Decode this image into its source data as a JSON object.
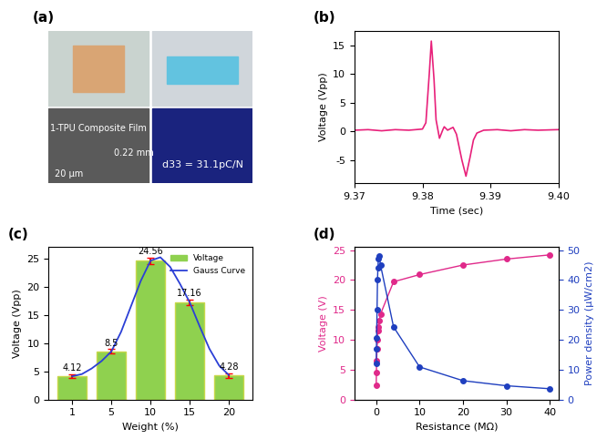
{
  "photo_panel": {
    "title": "(a)",
    "texts": {
      "film": "1-TPU Composite Film",
      "thickness": "0.22 mm",
      "scale": "20 μm",
      "d33": "d33 = 31.1pC/N"
    }
  },
  "chart_data": [
    {
      "type": "line",
      "title": "(b)",
      "x_label": "Time (sec)",
      "y_label": "Voltage (Vpp)",
      "x": [
        9.37,
        9.372,
        9.374,
        9.376,
        9.378,
        9.379,
        9.38,
        9.3805,
        9.381,
        9.3813,
        9.3817,
        9.382,
        9.3825,
        9.383,
        9.3832,
        9.3837,
        9.384,
        9.3845,
        9.385,
        9.3858,
        9.3864,
        9.387,
        9.3875,
        9.388,
        9.389,
        9.391,
        9.393,
        9.395,
        9.397,
        9.4
      ],
      "values": [
        0.2,
        0.3,
        0.1,
        0.3,
        0.2,
        0.3,
        0.4,
        1.5,
        10,
        15.7,
        9,
        2,
        -1.2,
        0.3,
        0.8,
        0.2,
        0.4,
        0.7,
        -0.5,
        -5,
        -7.8,
        -4.5,
        -1.5,
        -0.3,
        0.2,
        0.3,
        0.1,
        0.3,
        0.2,
        0.3
      ],
      "color": "#e8207a",
      "xlim": [
        9.37,
        9.4
      ],
      "xticks": [
        {
          "value": 9.37,
          "label": "9.37"
        },
        {
          "value": 9.38,
          "label": "9.38"
        },
        {
          "value": 9.39,
          "label": "9.39"
        },
        {
          "value": 9.4,
          "label": "9.40"
        }
      ],
      "ylim": [
        -9,
        17.5
      ],
      "yticks": [
        -5,
        0,
        5,
        10,
        15
      ]
    },
    {
      "type": "bar",
      "title": "(c)",
      "x_label": "Weight (%)",
      "y_label": "Voltage (Vpp)",
      "categories": [
        "1",
        "5",
        "10",
        "15",
        "20"
      ],
      "series": [
        {
          "name": "Voltage",
          "type": "bar",
          "color": "#8fd14f",
          "values": [
            4.12,
            8.5,
            24.56,
            17.16,
            4.28
          ],
          "errors": [
            0.3,
            0.4,
            0.6,
            0.5,
            0.4
          ]
        },
        {
          "name": "Gauss Curve",
          "type": "line",
          "color": "#2b3fd6",
          "x": [
            0,
            0.25,
            0.5,
            0.75,
            1,
            1.25,
            1.5,
            1.75,
            2,
            2.25,
            2.5,
            2.75,
            3,
            3.25,
            3.5,
            3.75,
            4
          ],
          "values": [
            4.1,
            4.5,
            5.5,
            6.8,
            8.5,
            12,
            16.5,
            21,
            24.6,
            25.2,
            23.5,
            20.5,
            17.2,
            13,
            9,
            6,
            4.3
          ]
        }
      ],
      "data_labels": true,
      "legend": "upper right",
      "ylim": [
        0,
        27
      ],
      "yticks": [
        0,
        5,
        10,
        15,
        20,
        25
      ]
    },
    {
      "type": "line",
      "title": "(d)",
      "x_label": "Resistance (MΩ)",
      "y_label": "Voltage (V)",
      "y2_label": "Power density (μW/cm2)",
      "x": [
        0.01,
        0.05,
        0.1,
        0.2,
        0.3,
        0.4,
        0.5,
        0.7,
        1,
        4,
        10,
        20,
        30,
        40
      ],
      "series": [
        {
          "name": "Voltage",
          "color": "#e0298a",
          "marker": "o",
          "values": [
            2.4,
            4.5,
            6.5,
            8.5,
            10,
            11.5,
            12.2,
            13.2,
            14.3,
            19.7,
            20.9,
            22.5,
            23.5,
            24.2
          ]
        },
        {
          "name": "Power density",
          "color": "#1f3fbf",
          "marker": "o",
          "axis": "y2",
          "values": [
            12,
            17,
            20.5,
            30,
            40,
            44,
            47,
            48,
            45,
            24.3,
            10.9,
            6.3,
            4.6,
            3.6
          ]
        }
      ],
      "xlim": [
        -5,
        42
      ],
      "xticks": [
        0,
        10,
        20,
        30,
        40
      ],
      "ylim": [
        0,
        25.5
      ],
      "yticks": [
        0,
        5,
        10,
        15,
        20,
        25
      ],
      "y2lim": [
        0,
        51
      ],
      "y2ticks": [
        0,
        10,
        20,
        30,
        40,
        50
      ]
    }
  ]
}
